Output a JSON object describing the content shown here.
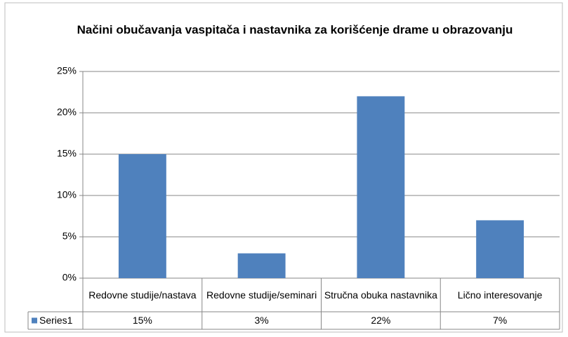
{
  "chart_data": {
    "type": "bar",
    "title": "Načini obučavanja vaspitača i nastavnika za korišćenje drame u obrazovanju",
    "categories": [
      "Redovne studije/nastava",
      "Redovne studije/seminari",
      "Stručna obuka nastavnika",
      "Lično interesovanje"
    ],
    "series": [
      {
        "name": "Series1",
        "color": "#4f81bd",
        "values": [
          15,
          3,
          22,
          7
        ],
        "value_labels": [
          "15%",
          "3%",
          "22%",
          "7%"
        ]
      }
    ],
    "ylim": [
      0,
      25
    ],
    "yticks": [
      {
        "value": 0,
        "label": "0%"
      },
      {
        "value": 5,
        "label": "5%"
      },
      {
        "value": 10,
        "label": "10%"
      },
      {
        "value": 15,
        "label": "15%"
      },
      {
        "value": 20,
        "label": "20%"
      },
      {
        "value": 25,
        "label": "25%"
      }
    ],
    "grid": true
  }
}
